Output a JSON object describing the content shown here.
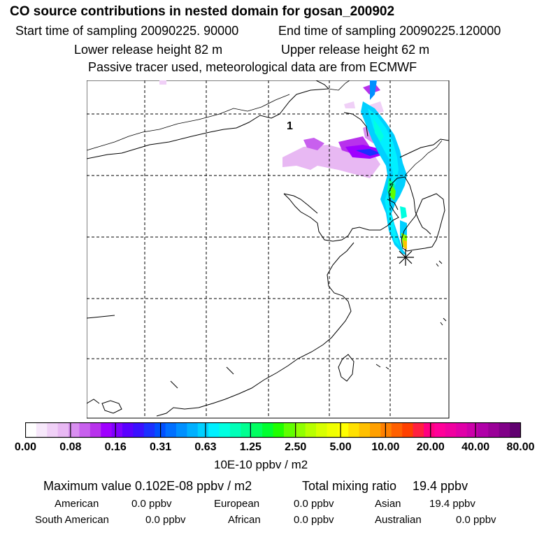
{
  "header": {
    "title": "CO  source contributions in nested domain for gosan_200902",
    "start_time": "Start time of sampling 20090225. 90000",
    "end_time": "End time of sampling 20090225.120000",
    "lower_release": "Lower release height   82 m",
    "upper_release": "Upper release height   62 m",
    "tracer_note": "Passive tracer used, meteorological data are from ECMWF"
  },
  "map": {
    "region_label": "1",
    "receptor_marker": "gosan-receptor-star"
  },
  "colorbar": {
    "tick_labels": [
      "0.00",
      "0.08",
      "0.16",
      "0.31",
      "0.63",
      "1.25",
      "2.50",
      "5.00",
      "10.00",
      "20.00",
      "40.00",
      "80.00"
    ],
    "units": "10E-10 ppbv / m2",
    "colors": [
      "#ffffff",
      "#f7e8fb",
      "#f0d0f7",
      "#e8b8f3",
      "#d98ff0",
      "#c860ee",
      "#b832ec",
      "#9f00ff",
      "#7f00ff",
      "#5a00ff",
      "#3a10ff",
      "#1a30ff",
      "#0050ff",
      "#0070ff",
      "#0090ff",
      "#00b0ff",
      "#00d0ff",
      "#00f0ff",
      "#00ffe0",
      "#00ffb8",
      "#00ff90",
      "#00ff60",
      "#00ff30",
      "#20ff00",
      "#60ff00",
      "#90ff00",
      "#b8ff00",
      "#d8ff00",
      "#f0ff00",
      "#ffff00",
      "#ffe000",
      "#ffc000",
      "#ffa000",
      "#ff8000",
      "#ff6000",
      "#ff4000",
      "#ff2040",
      "#ff0080",
      "#ff0099",
      "#f000a0",
      "#e000a8",
      "#cc00aa",
      "#b000a8",
      "#9a0098",
      "#800088",
      "#600070"
    ]
  },
  "summary": {
    "max_value": "Maximum value  0.102E-08 ppbv / m2",
    "total_label": "Total mixing ratio",
    "total_value": "19.4 ppbv",
    "american_label": "American",
    "american_value": "0.0 ppbv",
    "european_label": "European",
    "european_value": "0.0 ppbv",
    "asian_label": "Asian",
    "asian_value": "19.4 ppbv",
    "south_american_label": "South American",
    "south_american_value": "0.0 ppbv",
    "african_label": "African",
    "african_value": "0.0 ppbv",
    "australian_label": "Australian",
    "australian_value": "0.0 ppbv"
  }
}
